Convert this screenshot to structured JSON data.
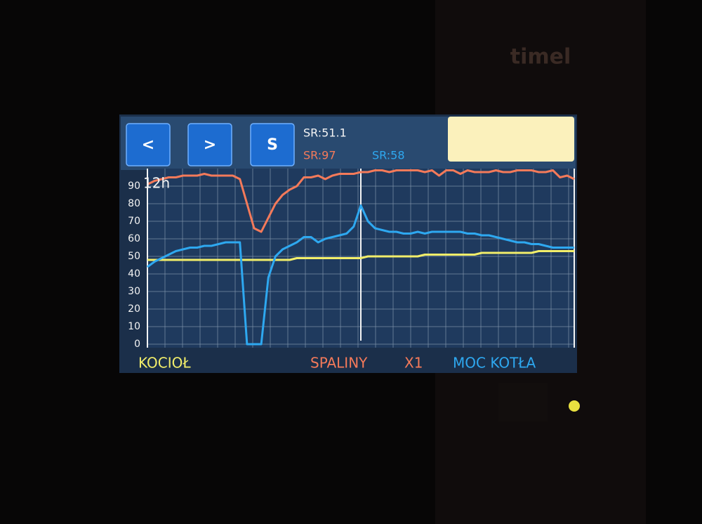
{
  "brand": "timel",
  "header": {
    "buttons": [
      "<",
      ">",
      "S"
    ],
    "readouts": [
      "SR:51.1",
      "SR:97",
      "SR:58"
    ]
  },
  "chart_data": {
    "type": "line",
    "period_label": "12h",
    "scale_label": "X1",
    "categories": [
      null,
      null,
      null,
      null,
      null,
      null,
      null,
      null,
      null,
      null,
      null,
      null,
      null,
      null,
      null,
      null,
      null,
      null,
      null,
      null,
      null,
      null,
      null,
      null,
      null,
      null,
      null,
      null,
      null,
      null,
      null,
      null,
      null,
      null,
      null,
      null,
      null,
      null,
      null,
      null,
      null,
      null,
      null,
      null,
      null,
      null,
      null,
      null,
      null,
      null,
      null,
      null,
      null,
      null,
      null,
      null,
      null,
      null,
      null,
      null,
      null
    ],
    "ylim": [
      0,
      100
    ],
    "yticks": [
      0,
      10,
      20,
      30,
      40,
      50,
      60,
      70,
      80,
      90
    ],
    "grid": true,
    "series": [
      {
        "name": "KOCIOŁ",
        "color": "#f2ee6a",
        "values": [
          48,
          48,
          48,
          48,
          48,
          48,
          48,
          48,
          48,
          48,
          48,
          48,
          48,
          48,
          48,
          48,
          48,
          48,
          48,
          48,
          48,
          49,
          49,
          49,
          49,
          49,
          49,
          49,
          49,
          49,
          49,
          50,
          50,
          50,
          50,
          50,
          50,
          50,
          50,
          51,
          51,
          51,
          51,
          51,
          51,
          51,
          51,
          52,
          52,
          52,
          52,
          52,
          52,
          52,
          52,
          53,
          53,
          53,
          53,
          53,
          53
        ]
      },
      {
        "name": "SPALINY",
        "color": "#f47a5a",
        "values": [
          91,
          93,
          94,
          95,
          95,
          96,
          96,
          96,
          97,
          96,
          96,
          96,
          96,
          94,
          80,
          66,
          64,
          72,
          80,
          85,
          88,
          90,
          95,
          95,
          96,
          94,
          96,
          97,
          97,
          97,
          98,
          98,
          99,
          99,
          98,
          99,
          99,
          99,
          99,
          98,
          99,
          96,
          99,
          99,
          97,
          99,
          98,
          98,
          98,
          99,
          98,
          98,
          99,
          99,
          99,
          98,
          98,
          99,
          95,
          96,
          94
        ]
      },
      {
        "name": "MOC KOTŁA",
        "color": "#2ea8f0",
        "values": [
          44,
          47,
          49,
          51,
          53,
          54,
          55,
          55,
          56,
          56,
          57,
          58,
          58,
          58,
          0,
          0,
          0,
          38,
          50,
          54,
          56,
          58,
          61,
          61,
          58,
          60,
          61,
          62,
          63,
          67,
          79,
          70,
          66,
          65,
          64,
          64,
          63,
          63,
          64,
          63,
          64,
          64,
          64,
          64,
          64,
          63,
          63,
          62,
          62,
          61,
          60,
          59,
          58,
          58,
          57,
          57,
          56,
          55,
          55,
          55,
          55
        ]
      }
    ]
  }
}
